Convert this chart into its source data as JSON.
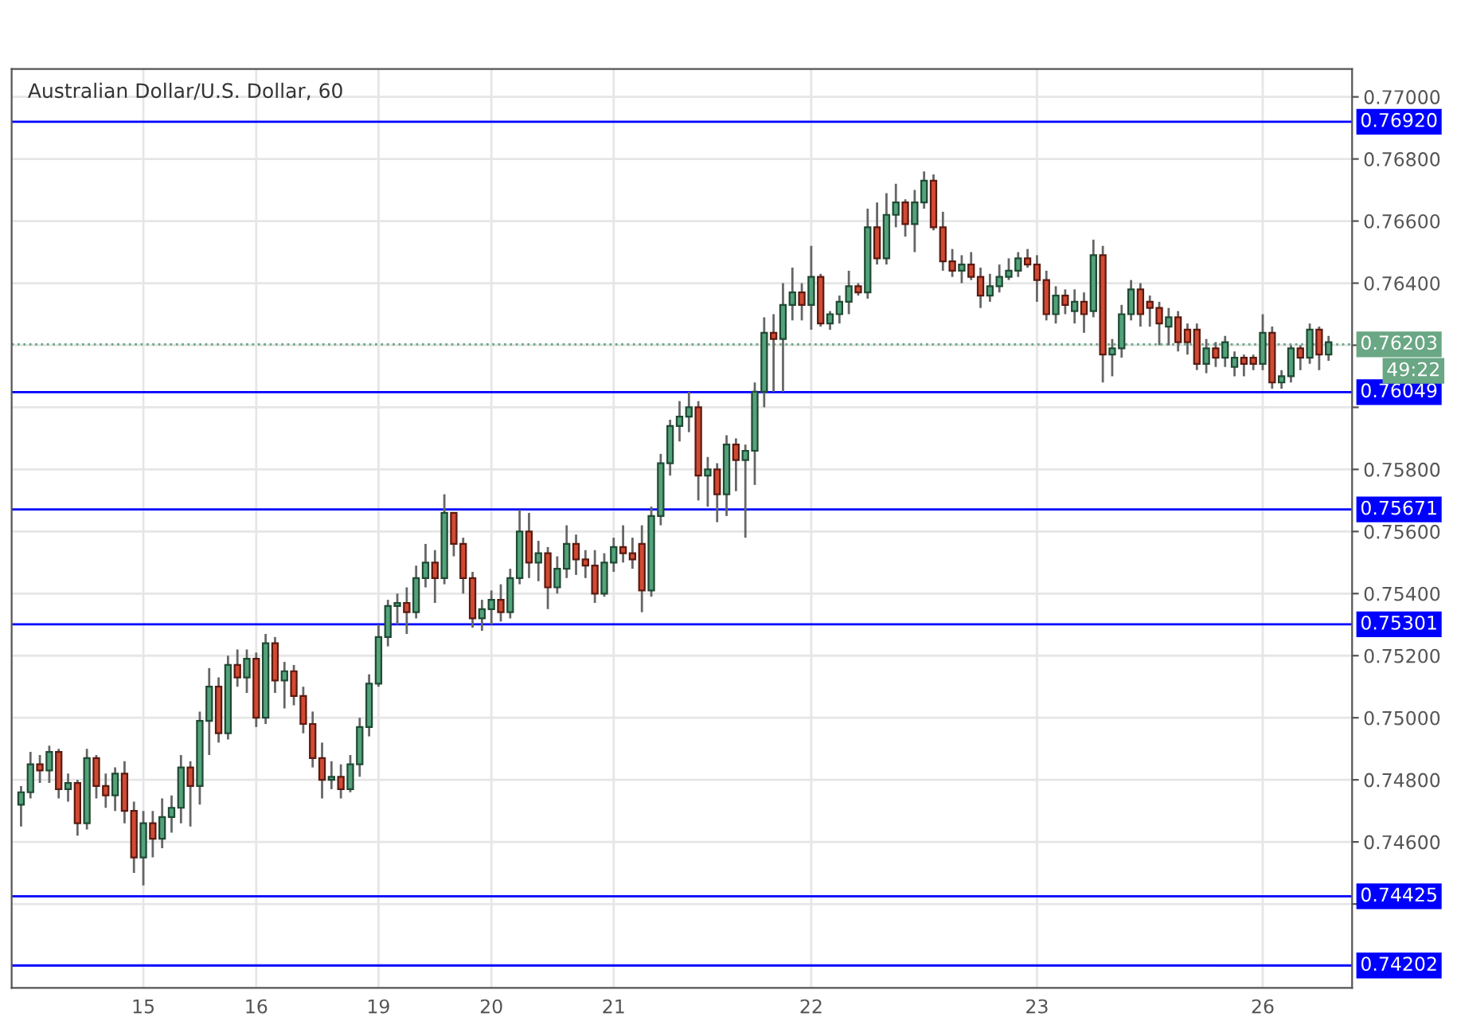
{
  "chart_data": {
    "type": "candlestick",
    "title": "Australian Dollar/U.S. Dollar, 60",
    "categories": [
      null,
      null,
      null,
      null,
      null,
      null,
      null,
      null,
      null,
      null,
      null,
      null,
      null,
      "15",
      null,
      null,
      null,
      null,
      null,
      null,
      null,
      null,
      null,
      null,
      null,
      "16",
      null,
      null,
      null,
      null,
      null,
      null,
      null,
      null,
      null,
      null,
      null,
      null,
      "19",
      null,
      null,
      null,
      null,
      null,
      null,
      null,
      null,
      null,
      null,
      null,
      "20",
      null,
      null,
      null,
      null,
      null,
      null,
      null,
      null,
      null,
      null,
      null,
      null,
      "21",
      null,
      null,
      null,
      null,
      null,
      null,
      null,
      null,
      null,
      null,
      null,
      null,
      null,
      null,
      null,
      null,
      null,
      null,
      null,
      null,
      "22",
      null,
      null,
      null,
      null,
      null,
      null,
      null,
      null,
      null,
      null,
      null,
      null,
      null,
      null,
      null,
      null,
      null,
      null,
      null,
      null,
      null,
      null,
      null,
      "23",
      null,
      null,
      null,
      null,
      null,
      null,
      null,
      null,
      null,
      null,
      null,
      null,
      null,
      null,
      null,
      null,
      null,
      null,
      null,
      null,
      null,
      null,
      null,
      "26",
      null,
      null,
      null,
      null,
      null,
      null,
      null
    ],
    "ohlc": [
      [
        0.7472,
        0.7478,
        0.7465,
        0.7476
      ],
      [
        0.7476,
        0.7489,
        0.7474,
        0.7485
      ],
      [
        0.7485,
        0.7488,
        0.7479,
        0.7483
      ],
      [
        0.7483,
        0.7491,
        0.7479,
        0.7489
      ],
      [
        0.7489,
        0.749,
        0.7474,
        0.7477
      ],
      [
        0.7477,
        0.7482,
        0.7473,
        0.7479
      ],
      [
        0.7479,
        0.748,
        0.7462,
        0.7466
      ],
      [
        0.7466,
        0.749,
        0.7464,
        0.7487
      ],
      [
        0.7487,
        0.7488,
        0.7474,
        0.7478
      ],
      [
        0.7478,
        0.7482,
        0.7471,
        0.7475
      ],
      [
        0.7475,
        0.7484,
        0.747,
        0.7482
      ],
      [
        0.7482,
        0.7486,
        0.7466,
        0.747
      ],
      [
        0.747,
        0.7473,
        0.745,
        0.7455
      ],
      [
        0.7455,
        0.747,
        0.7446,
        0.7466
      ],
      [
        0.7466,
        0.747,
        0.7455,
        0.7461
      ],
      [
        0.7461,
        0.7474,
        0.7458,
        0.7468
      ],
      [
        0.7468,
        0.7475,
        0.7463,
        0.7471
      ],
      [
        0.7471,
        0.7488,
        0.7466,
        0.7484
      ],
      [
        0.7484,
        0.7486,
        0.7465,
        0.7478
      ],
      [
        0.7478,
        0.7502,
        0.7472,
        0.7499
      ],
      [
        0.7499,
        0.7516,
        0.7488,
        0.751
      ],
      [
        0.751,
        0.7513,
        0.7492,
        0.7495
      ],
      [
        0.7495,
        0.752,
        0.7493,
        0.7517
      ],
      [
        0.7517,
        0.7522,
        0.751,
        0.7513
      ],
      [
        0.7513,
        0.7522,
        0.7508,
        0.7519
      ],
      [
        0.7519,
        0.7521,
        0.7497,
        0.75
      ],
      [
        0.75,
        0.7527,
        0.7498,
        0.7524
      ],
      [
        0.7524,
        0.7526,
        0.7508,
        0.7512
      ],
      [
        0.7512,
        0.7518,
        0.7503,
        0.7515
      ],
      [
        0.7515,
        0.7517,
        0.7504,
        0.7507
      ],
      [
        0.7507,
        0.751,
        0.7495,
        0.7498
      ],
      [
        0.7498,
        0.7502,
        0.7484,
        0.7487
      ],
      [
        0.7487,
        0.7492,
        0.7474,
        0.748
      ],
      [
        0.748,
        0.7486,
        0.7477,
        0.7481
      ],
      [
        0.7481,
        0.7485,
        0.7474,
        0.7477
      ],
      [
        0.7477,
        0.7488,
        0.7476,
        0.7485
      ],
      [
        0.7485,
        0.75,
        0.7481,
        0.7497
      ],
      [
        0.7497,
        0.7514,
        0.7494,
        0.7511
      ],
      [
        0.7511,
        0.753,
        0.751,
        0.7526
      ],
      [
        0.7526,
        0.7538,
        0.7523,
        0.7536
      ],
      [
        0.7536,
        0.754,
        0.753,
        0.7537
      ],
      [
        0.7537,
        0.7542,
        0.7527,
        0.7534
      ],
      [
        0.7534,
        0.7549,
        0.7532,
        0.7545
      ],
      [
        0.7545,
        0.7556,
        0.7542,
        0.755
      ],
      [
        0.755,
        0.7554,
        0.7537,
        0.7545
      ],
      [
        0.7545,
        0.7572,
        0.7543,
        0.7566
      ],
      [
        0.7566,
        0.7566,
        0.7552,
        0.7556
      ],
      [
        0.7556,
        0.7558,
        0.754,
        0.7545
      ],
      [
        0.7545,
        0.7547,
        0.7529,
        0.7532
      ],
      [
        0.7532,
        0.7538,
        0.7528,
        0.7535
      ],
      [
        0.7535,
        0.7541,
        0.753,
        0.7538
      ],
      [
        0.7538,
        0.7543,
        0.7531,
        0.7534
      ],
      [
        0.7534,
        0.7548,
        0.7532,
        0.7545
      ],
      [
        0.7545,
        0.7567,
        0.7543,
        0.756
      ],
      [
        0.756,
        0.7566,
        0.7545,
        0.755
      ],
      [
        0.755,
        0.7557,
        0.7544,
        0.7553
      ],
      [
        0.7553,
        0.7555,
        0.7535,
        0.7542
      ],
      [
        0.7542,
        0.7552,
        0.754,
        0.7548
      ],
      [
        0.7548,
        0.7562,
        0.7545,
        0.7556
      ],
      [
        0.7556,
        0.7559,
        0.7546,
        0.7551
      ],
      [
        0.7551,
        0.7554,
        0.7545,
        0.7549
      ],
      [
        0.7549,
        0.7554,
        0.7537,
        0.754
      ],
      [
        0.754,
        0.7553,
        0.7539,
        0.755
      ],
      [
        0.755,
        0.7558,
        0.7547,
        0.7555
      ],
      [
        0.7555,
        0.7562,
        0.755,
        0.7553
      ],
      [
        0.7553,
        0.7558,
        0.7548,
        0.7551
      ],
      [
        0.7556,
        0.7562,
        0.7534,
        0.7541
      ],
      [
        0.7541,
        0.7568,
        0.7539,
        0.7565
      ],
      [
        0.7565,
        0.7585,
        0.7562,
        0.7582
      ],
      [
        0.7582,
        0.7596,
        0.7578,
        0.7594
      ],
      [
        0.7594,
        0.7602,
        0.7589,
        0.7597
      ],
      [
        0.7597,
        0.7605,
        0.7592,
        0.76
      ],
      [
        0.76,
        0.7602,
        0.757,
        0.7578
      ],
      [
        0.7578,
        0.7584,
        0.7568,
        0.758
      ],
      [
        0.758,
        0.7582,
        0.7563,
        0.7572
      ],
      [
        0.7572,
        0.7591,
        0.7565,
        0.7588
      ],
      [
        0.7588,
        0.759,
        0.7573,
        0.7583
      ],
      [
        0.7583,
        0.7588,
        0.7558,
        0.7586
      ],
      [
        0.7586,
        0.7608,
        0.7575,
        0.7605
      ],
      [
        0.7605,
        0.7629,
        0.76,
        0.7624
      ],
      [
        0.7624,
        0.763,
        0.7605,
        0.7622
      ],
      [
        0.7622,
        0.764,
        0.7605,
        0.7633
      ],
      [
        0.7633,
        0.7645,
        0.7628,
        0.7637
      ],
      [
        0.7637,
        0.764,
        0.7628,
        0.7633
      ],
      [
        0.7633,
        0.7652,
        0.7625,
        0.7642
      ],
      [
        0.7642,
        0.7643,
        0.7626,
        0.7627
      ],
      [
        0.7627,
        0.7631,
        0.7625,
        0.763
      ],
      [
        0.763,
        0.7636,
        0.7627,
        0.7634
      ],
      [
        0.7634,
        0.7644,
        0.763,
        0.7639
      ],
      [
        0.7639,
        0.764,
        0.7636,
        0.7637
      ],
      [
        0.7637,
        0.7664,
        0.7635,
        0.7658
      ],
      [
        0.7658,
        0.7666,
        0.7646,
        0.7648
      ],
      [
        0.7648,
        0.7669,
        0.7646,
        0.7662
      ],
      [
        0.7662,
        0.7672,
        0.7658,
        0.7666
      ],
      [
        0.7666,
        0.7667,
        0.7655,
        0.7659
      ],
      [
        0.7659,
        0.767,
        0.765,
        0.7666
      ],
      [
        0.7666,
        0.7676,
        0.7664,
        0.7673
      ],
      [
        0.7673,
        0.7675,
        0.7657,
        0.7658
      ],
      [
        0.7658,
        0.7663,
        0.7644,
        0.7647
      ],
      [
        0.7647,
        0.7651,
        0.7642,
        0.7644
      ],
      [
        0.7644,
        0.7649,
        0.764,
        0.7646
      ],
      [
        0.7646,
        0.765,
        0.7641,
        0.7642
      ],
      [
        0.7642,
        0.7645,
        0.7632,
        0.7636
      ],
      [
        0.7636,
        0.7643,
        0.7634,
        0.7639
      ],
      [
        0.7639,
        0.7646,
        0.7637,
        0.7642
      ],
      [
        0.7642,
        0.7648,
        0.7641,
        0.7644
      ],
      [
        0.7644,
        0.765,
        0.7642,
        0.7648
      ],
      [
        0.7648,
        0.7651,
        0.7645,
        0.7646
      ],
      [
        0.7646,
        0.7649,
        0.7634,
        0.7641
      ],
      [
        0.7641,
        0.7644,
        0.7628,
        0.763
      ],
      [
        0.763,
        0.7639,
        0.7627,
        0.7636
      ],
      [
        0.7636,
        0.7638,
        0.763,
        0.7633
      ],
      [
        0.7631,
        0.7638,
        0.7627,
        0.7634
      ],
      [
        0.7634,
        0.7637,
        0.7624,
        0.763
      ],
      [
        0.7631,
        0.7654,
        0.7629,
        0.7649
      ],
      [
        0.7649,
        0.7652,
        0.7608,
        0.7617
      ],
      [
        0.7617,
        0.7622,
        0.761,
        0.7619
      ],
      [
        0.7619,
        0.7633,
        0.7616,
        0.763
      ],
      [
        0.763,
        0.7641,
        0.7628,
        0.7638
      ],
      [
        0.7638,
        0.764,
        0.7626,
        0.763
      ],
      [
        0.7634,
        0.7636,
        0.7626,
        0.7632
      ],
      [
        0.7632,
        0.7634,
        0.762,
        0.7627
      ],
      [
        0.7626,
        0.7632,
        0.762,
        0.7629
      ],
      [
        0.7629,
        0.7631,
        0.7618,
        0.7621
      ],
      [
        0.7625,
        0.7627,
        0.7617,
        0.7621
      ],
      [
        0.7625,
        0.7627,
        0.7612,
        0.7614
      ],
      [
        0.7614,
        0.7622,
        0.7611,
        0.7619
      ],
      [
        0.7619,
        0.7621,
        0.7613,
        0.7616
      ],
      [
        0.7616,
        0.7623,
        0.7613,
        0.7621
      ],
      [
        0.7613,
        0.7618,
        0.761,
        0.7616
      ],
      [
        0.7616,
        0.7617,
        0.761,
        0.7614
      ],
      [
        0.7616,
        0.7617,
        0.7612,
        0.7614
      ],
      [
        0.7614,
        0.763,
        0.7612,
        0.7624
      ],
      [
        0.7624,
        0.7626,
        0.7606,
        0.7608
      ],
      [
        0.7608,
        0.7612,
        0.7606,
        0.761
      ],
      [
        0.761,
        0.762,
        0.7608,
        0.7619
      ],
      [
        0.7619,
        0.762,
        0.7612,
        0.7616
      ],
      [
        0.7616,
        0.7627,
        0.7614,
        0.7625
      ],
      [
        0.7625,
        0.7626,
        0.7612,
        0.7617
      ],
      [
        0.7617,
        0.7623,
        0.7615,
        0.7621
      ]
    ],
    "ylim": [
      0.7413,
      0.7709
    ],
    "yticks": [
      {
        "value": 0.744,
        "label": null
      },
      {
        "value": 0.746,
        "label": "0.74600"
      },
      {
        "value": 0.748,
        "label": "0.74800"
      },
      {
        "value": 0.75,
        "label": "0.75000"
      },
      {
        "value": 0.752,
        "label": "0.75200"
      },
      {
        "value": 0.754,
        "label": "0.75400"
      },
      {
        "value": 0.756,
        "label": "0.75600"
      },
      {
        "value": 0.758,
        "label": "0.75800"
      },
      {
        "value": 0.76,
        "label": null
      },
      {
        "value": 0.762,
        "label": null
      },
      {
        "value": 0.764,
        "label": "0.76400"
      },
      {
        "value": 0.766,
        "label": "0.76600"
      },
      {
        "value": 0.768,
        "label": "0.76800"
      },
      {
        "value": 0.77,
        "label": "0.77000"
      }
    ],
    "ref_lines": [
      {
        "axis": "y",
        "value": 0.7692,
        "label": "0.76920",
        "color": "#0000ff"
      },
      {
        "axis": "y",
        "value": 0.76203,
        "label": "0.76203",
        "color": "#6aa784",
        "line_style": "dotted"
      },
      {
        "axis": "y",
        "value": 0.76049,
        "label": "0.76049",
        "color": "#0000ff"
      },
      {
        "axis": "y",
        "value": 0.75671,
        "label": "0.75671",
        "color": "#0000ff"
      },
      {
        "axis": "y",
        "value": 0.75301,
        "label": "0.75301",
        "color": "#0000ff"
      },
      {
        "axis": "y",
        "value": 0.74425,
        "label": "0.74425",
        "color": "#0000ff"
      },
      {
        "axis": "y",
        "value": 0.74202,
        "label": "0.74202",
        "color": "#0000ff"
      }
    ],
    "annotations": [
      "49:22"
    ],
    "grid": true
  }
}
